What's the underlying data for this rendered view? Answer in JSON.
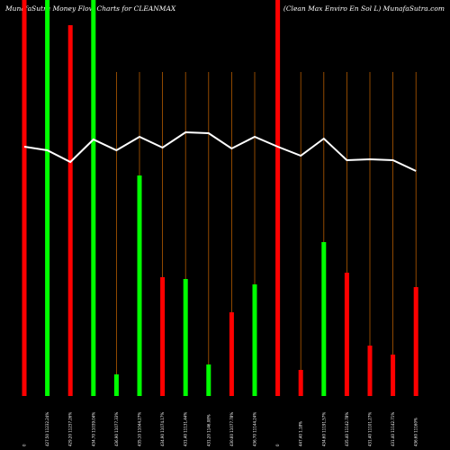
{
  "chart_data": {
    "type": "bar",
    "title": "MunafaSutra  Money Flow  Charts for CLEANMAX",
    "subtitle": "(Clean Max Enviro  En  Sol L) MunafaSutra.com",
    "categories": [
      "0",
      "427.50 11232.24%",
      "429.20 11237.26%",
      "434.70 11039.04%",
      "436.90 11077.33%",
      "435.10 11044.27%",
      "434.90 11074.17%",
      "431.40 11131.44%",
      "431.20 1146.08%",
      "430.60 11077.78%",
      "436.70 11144.24%",
      "0",
      "447.40 1.18%",
      "434.60 11191.57%",
      "435.40 11142.78%",
      "431.40 11101.27%",
      "431.40 11142.71%",
      "436.60 11160%"
    ],
    "values": [
      440,
      440,
      412,
      440,
      24,
      245,
      132,
      130,
      35,
      93,
      124,
      440,
      29,
      171,
      137,
      56,
      46,
      121
    ],
    "colors": [
      "#ff0000",
      "#00ff00",
      "#ff0000",
      "#00ff00",
      "#00ff00",
      "#00ff00",
      "#ff0000",
      "#00ff00",
      "#00ff00",
      "#ff0000",
      "#00ff00",
      "#ff0000",
      "#ff0000",
      "#00ff00",
      "#ff0000",
      "#ff0000",
      "#ff0000",
      "#ff0000"
    ],
    "line_values": [
      277,
      273,
      260,
      285,
      273,
      288,
      276,
      293,
      292,
      275,
      288,
      277,
      267,
      286,
      262,
      263,
      262,
      250
    ],
    "line_color": "#ffffff",
    "grid_color": "#b35a00",
    "ylim": [
      0,
      440
    ]
  }
}
